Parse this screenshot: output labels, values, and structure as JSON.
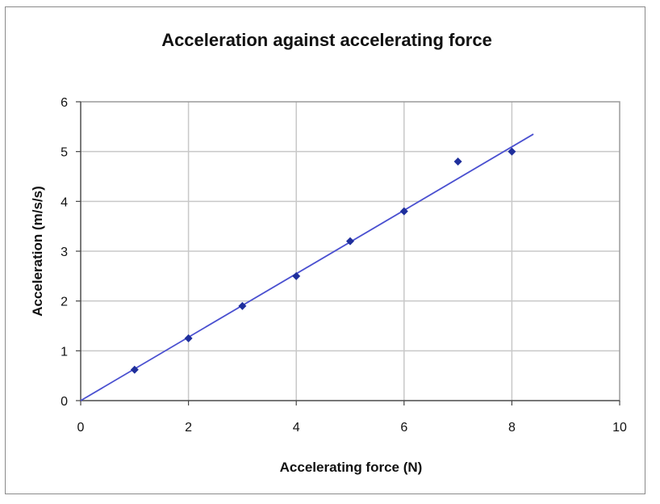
{
  "chart_data": {
    "type": "scatter",
    "title": "Acceleration against accelerating force",
    "xlabel": "Accelerating force (N)",
    "ylabel": "Acceleration (m/s/s)",
    "xlim": [
      0,
      10
    ],
    "ylim": [
      0,
      6
    ],
    "x_ticks": [
      "0",
      "2",
      "4",
      "6",
      "8",
      "10"
    ],
    "y_ticks": [
      "0",
      "1",
      "2",
      "3",
      "4",
      "5",
      "6"
    ],
    "grid": true,
    "series": [
      {
        "marker": "diamond",
        "color": "#1f2f9c",
        "x": [
          1,
          2,
          3,
          4,
          5,
          6,
          7,
          8
        ],
        "y": [
          0.62,
          1.25,
          1.9,
          2.5,
          3.2,
          3.8,
          4.8,
          5.0
        ]
      }
    ],
    "trendline": {
      "type": "linear",
      "color": "#4a50d0",
      "x": [
        0,
        8.4
      ],
      "y": [
        0,
        5.35
      ]
    }
  }
}
